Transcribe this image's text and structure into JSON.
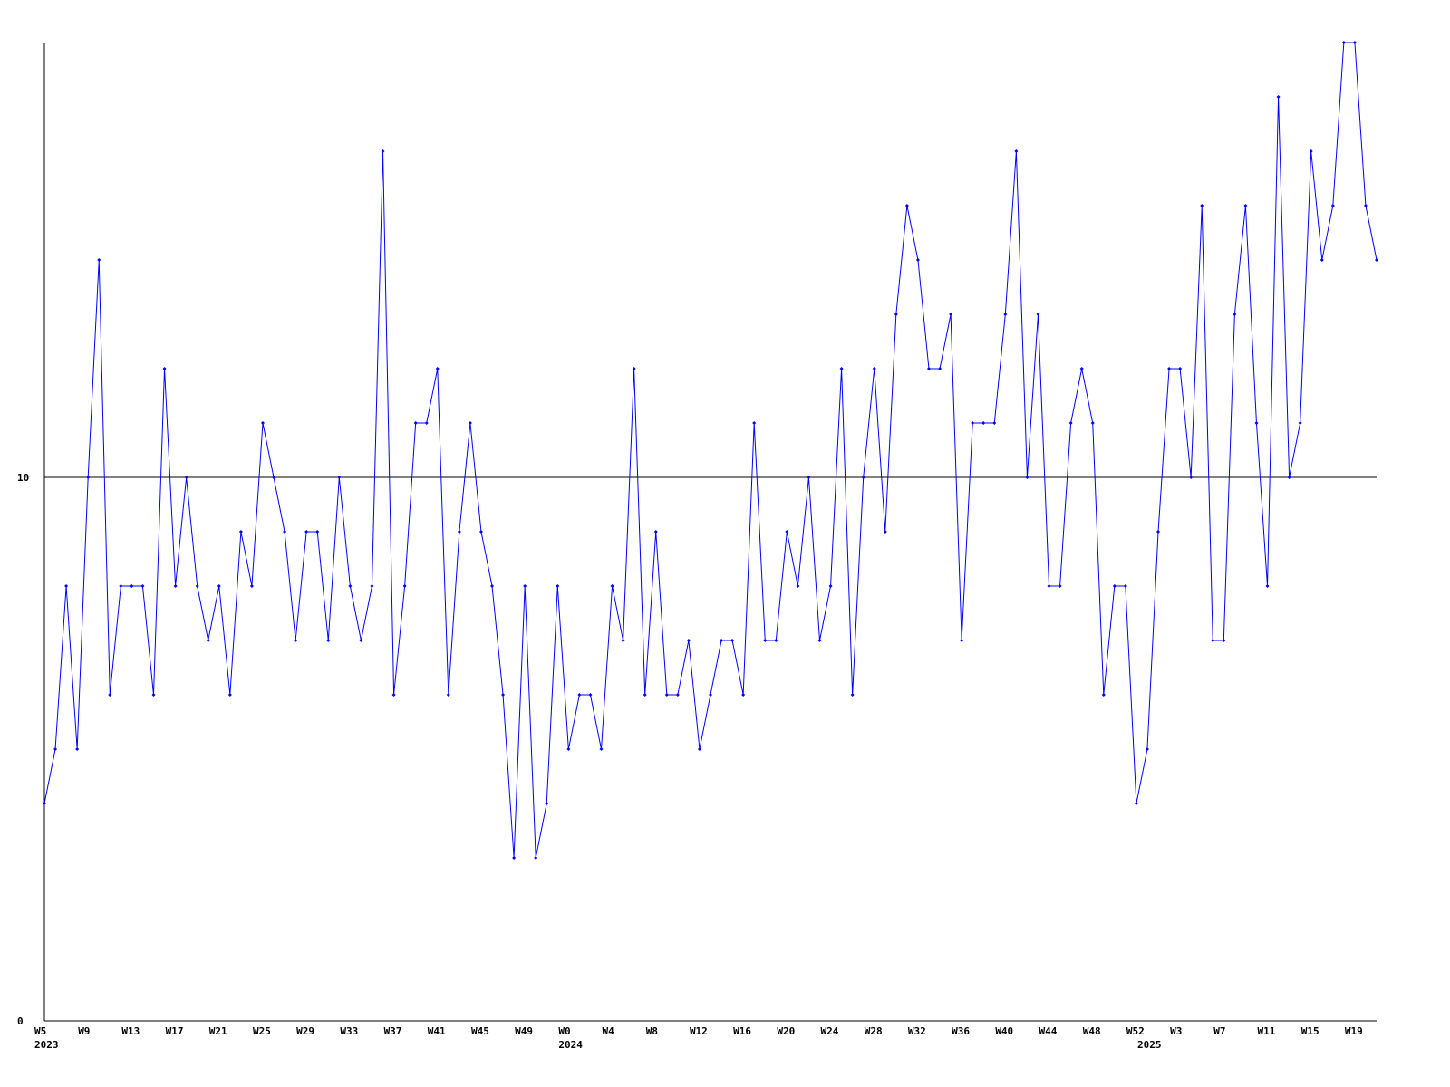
{
  "chart_data": {
    "type": "line",
    "categories": [
      "W5",
      null,
      null,
      null,
      "W9",
      null,
      null,
      null,
      "W13",
      null,
      null,
      null,
      "W17",
      null,
      null,
      null,
      "W21",
      null,
      null,
      null,
      "W25",
      null,
      null,
      null,
      "W29",
      null,
      null,
      null,
      "W33",
      null,
      null,
      null,
      "W37",
      null,
      null,
      null,
      "W41",
      null,
      null,
      null,
      "W45",
      null,
      null,
      null,
      "W49",
      null,
      null,
      null,
      "W0",
      null,
      null,
      null,
      "W4",
      null,
      null,
      null,
      "W8",
      null,
      null,
      null,
      "W12",
      null,
      null,
      null,
      "W16",
      null,
      null,
      null,
      "W20",
      null,
      null,
      null,
      "W24",
      null,
      null,
      null,
      "W28",
      null,
      null,
      null,
      "W32",
      null,
      null,
      null,
      "W36",
      null,
      null,
      null,
      "W40",
      null,
      null,
      null,
      "W44",
      null,
      null,
      null,
      "W48",
      null,
      null,
      null,
      "W52",
      null,
      null,
      null,
      "W3",
      null,
      null,
      null,
      "W7",
      null,
      null,
      null,
      "W11",
      null,
      null,
      null,
      "W15",
      null,
      null,
      null,
      "W19",
      null,
      null
    ],
    "year_labels": [
      "2023",
      null,
      null,
      null,
      null,
      null,
      null,
      null,
      null,
      null,
      null,
      null,
      null,
      null,
      null,
      null,
      null,
      null,
      null,
      null,
      null,
      null,
      null,
      null,
      null,
      null,
      null,
      null,
      null,
      null,
      null,
      null,
      null,
      null,
      null,
      null,
      null,
      null,
      null,
      null,
      null,
      null,
      null,
      null,
      null,
      null,
      null,
      null,
      "2024",
      null,
      null,
      null,
      null,
      null,
      null,
      null,
      null,
      null,
      null,
      null,
      null,
      null,
      null,
      null,
      null,
      null,
      null,
      null,
      null,
      null,
      null,
      null,
      null,
      null,
      null,
      null,
      null,
      null,
      null,
      null,
      null,
      null,
      null,
      null,
      null,
      null,
      null,
      null,
      null,
      null,
      null,
      null,
      null,
      null,
      null,
      null,
      null,
      null,
      null,
      null,
      null,
      "2025",
      null,
      null,
      null,
      null,
      null,
      null,
      null,
      null,
      null,
      null,
      null,
      null,
      null,
      null,
      null,
      null,
      null,
      null,
      null,
      null
    ],
    "series": [
      {
        "color": "#0000ff",
        "values": [
          4,
          5,
          8,
          5,
          10,
          14,
          6,
          8,
          8,
          8,
          6,
          12,
          8,
          10,
          8,
          7,
          8,
          6,
          9,
          8,
          11,
          10,
          9,
          7,
          9,
          9,
          7,
          10,
          8,
          7,
          8,
          16,
          6,
          8,
          11,
          11,
          12,
          6,
          9,
          11,
          9,
          8,
          6,
          3,
          8,
          3,
          4,
          8,
          5,
          6,
          6,
          5,
          8,
          7,
          12,
          6,
          9,
          6,
          6,
          7,
          5,
          6,
          7,
          7,
          6,
          11,
          7,
          7,
          9,
          8,
          10,
          7,
          8,
          12,
          6,
          10,
          12,
          9,
          13,
          15,
          14,
          12,
          12,
          13,
          7,
          11,
          11,
          11,
          13,
          16,
          10,
          13,
          8,
          8,
          11,
          12,
          11,
          6,
          8,
          8,
          4,
          5,
          9,
          12,
          12,
          10,
          15,
          7,
          7,
          13,
          15,
          11,
          8,
          17,
          10,
          11,
          16,
          14,
          15,
          18,
          18,
          15,
          14
        ]
      }
    ],
    "ylim": [
      0,
      18
    ],
    "yticks": [
      0,
      10
    ],
    "grid": true
  }
}
